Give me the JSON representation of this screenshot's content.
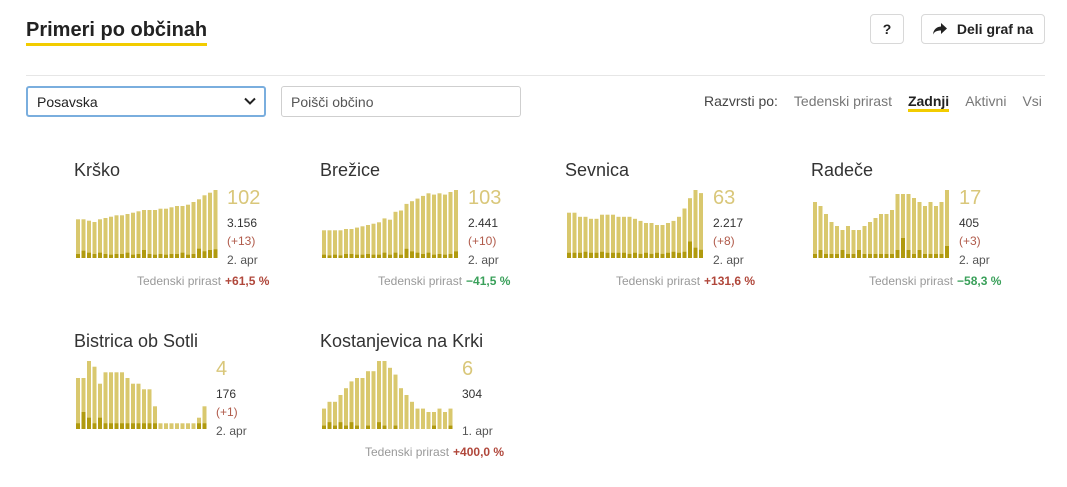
{
  "header": {
    "title": "Primeri po občinah",
    "help_label": "?",
    "share_label": "Deli graf na"
  },
  "filters": {
    "region_selected": "Posavska",
    "search_placeholder": "Poišči občino"
  },
  "sort": {
    "label": "Razvrsti po:",
    "options": [
      "Tedenski prirast",
      "Zadnji",
      "Aktivni",
      "Vsi"
    ],
    "active": "Zadnji"
  },
  "colors": {
    "bar": "#d9c86e",
    "bar_dark": "#b09a0e",
    "accent": "#f2cc00",
    "up": "#b0473b",
    "down": "#3aa05a"
  },
  "growth_label": "Tedenski prirast",
  "chart_data": [
    {
      "type": "bar",
      "name": "Krško",
      "latest": "102",
      "total": "3.156",
      "delta": "(+13)",
      "date": "2. apr",
      "growth": "+61,5 %",
      "trend": "up",
      "values": [
        58,
        58,
        56,
        54,
        58,
        60,
        62,
        64,
        64,
        66,
        68,
        70,
        72,
        72,
        72,
        74,
        74,
        76,
        78,
        78,
        80,
        84,
        88,
        94,
        98,
        102
      ],
      "new_cases": [
        6,
        11,
        8,
        6,
        8,
        6,
        5,
        6,
        6,
        8,
        5,
        6,
        12,
        6,
        5,
        6,
        5,
        6,
        6,
        8,
        5,
        6,
        14,
        10,
        12,
        13
      ]
    },
    {
      "type": "bar",
      "name": "Brežice",
      "latest": "103",
      "total": "2.441",
      "delta": "(+10)",
      "date": "2. apr",
      "growth": "−41,5 %",
      "trend": "down",
      "values": [
        42,
        42,
        42,
        42,
        44,
        44,
        46,
        48,
        50,
        52,
        54,
        60,
        58,
        70,
        72,
        82,
        86,
        90,
        94,
        98,
        96,
        98,
        96,
        100,
        103
      ],
      "new_cases": [
        5,
        4,
        5,
        4,
        6,
        6,
        5,
        5,
        6,
        5,
        5,
        8,
        5,
        8,
        5,
        14,
        10,
        8,
        6,
        8,
        5,
        6,
        5,
        6,
        10
      ]
    },
    {
      "type": "bar",
      "name": "Sevnica",
      "latest": "63",
      "total": "2.217",
      "delta": "(+8)",
      "date": "2. apr",
      "growth": "+131,6 %",
      "trend": "up",
      "values": [
        44,
        44,
        40,
        40,
        38,
        38,
        42,
        42,
        42,
        40,
        40,
        40,
        38,
        36,
        34,
        34,
        32,
        32,
        34,
        36,
        40,
        48,
        58,
        66,
        63
      ],
      "new_cases": [
        5,
        5,
        5,
        6,
        5,
        5,
        6,
        5,
        5,
        5,
        5,
        4,
        5,
        4,
        5,
        4,
        5,
        4,
        5,
        6,
        5,
        6,
        16,
        10,
        8
      ]
    },
    {
      "type": "bar",
      "name": "Radeče",
      "latest": "17",
      "total": "405",
      "delta": "(+3)",
      "date": "2. apr",
      "growth": "−58,3 %",
      "trend": "down",
      "values": [
        14,
        13,
        11,
        9,
        8,
        7,
        8,
        7,
        7,
        8,
        9,
        10,
        11,
        11,
        12,
        16,
        16,
        16,
        15,
        14,
        13,
        14,
        13,
        14,
        17
      ],
      "new_cases": [
        1,
        2,
        1,
        1,
        1,
        2,
        1,
        1,
        2,
        1,
        1,
        1,
        1,
        1,
        1,
        2,
        5,
        2,
        1,
        2,
        1,
        1,
        1,
        1,
        3
      ]
    },
    {
      "type": "bar",
      "name": "Bistrica ob Sotli",
      "latest": "4",
      "total": "176",
      "delta": "(+1)",
      "date": "2. apr",
      "growth": "",
      "trend": "",
      "values": [
        9,
        9,
        12,
        11,
        8,
        10,
        10,
        10,
        10,
        9,
        8,
        8,
        7,
        7,
        4,
        1,
        1,
        1,
        1,
        1,
        1,
        1,
        2,
        4
      ],
      "new_cases": [
        1,
        3,
        2,
        1,
        2,
        1,
        1,
        1,
        1,
        1,
        1,
        1,
        1,
        1,
        1,
        0,
        0,
        0,
        0,
        0,
        0,
        0,
        1,
        1
      ]
    },
    {
      "type": "bar",
      "name": "Kostanjevica na Krki",
      "latest": "6",
      "total": "304",
      "delta": "",
      "date": "1. apr",
      "growth": "+400,0 %",
      "trend": "up",
      "values": [
        6,
        8,
        8,
        10,
        12,
        14,
        15,
        15,
        17,
        17,
        20,
        20,
        18,
        16,
        12,
        10,
        8,
        6,
        6,
        5,
        5,
        6,
        5,
        6
      ],
      "new_cases": [
        1,
        2,
        1,
        2,
        1,
        2,
        1,
        0,
        1,
        0,
        2,
        1,
        0,
        1,
        0,
        0,
        0,
        0,
        0,
        0,
        1,
        0,
        0,
        1
      ]
    }
  ]
}
